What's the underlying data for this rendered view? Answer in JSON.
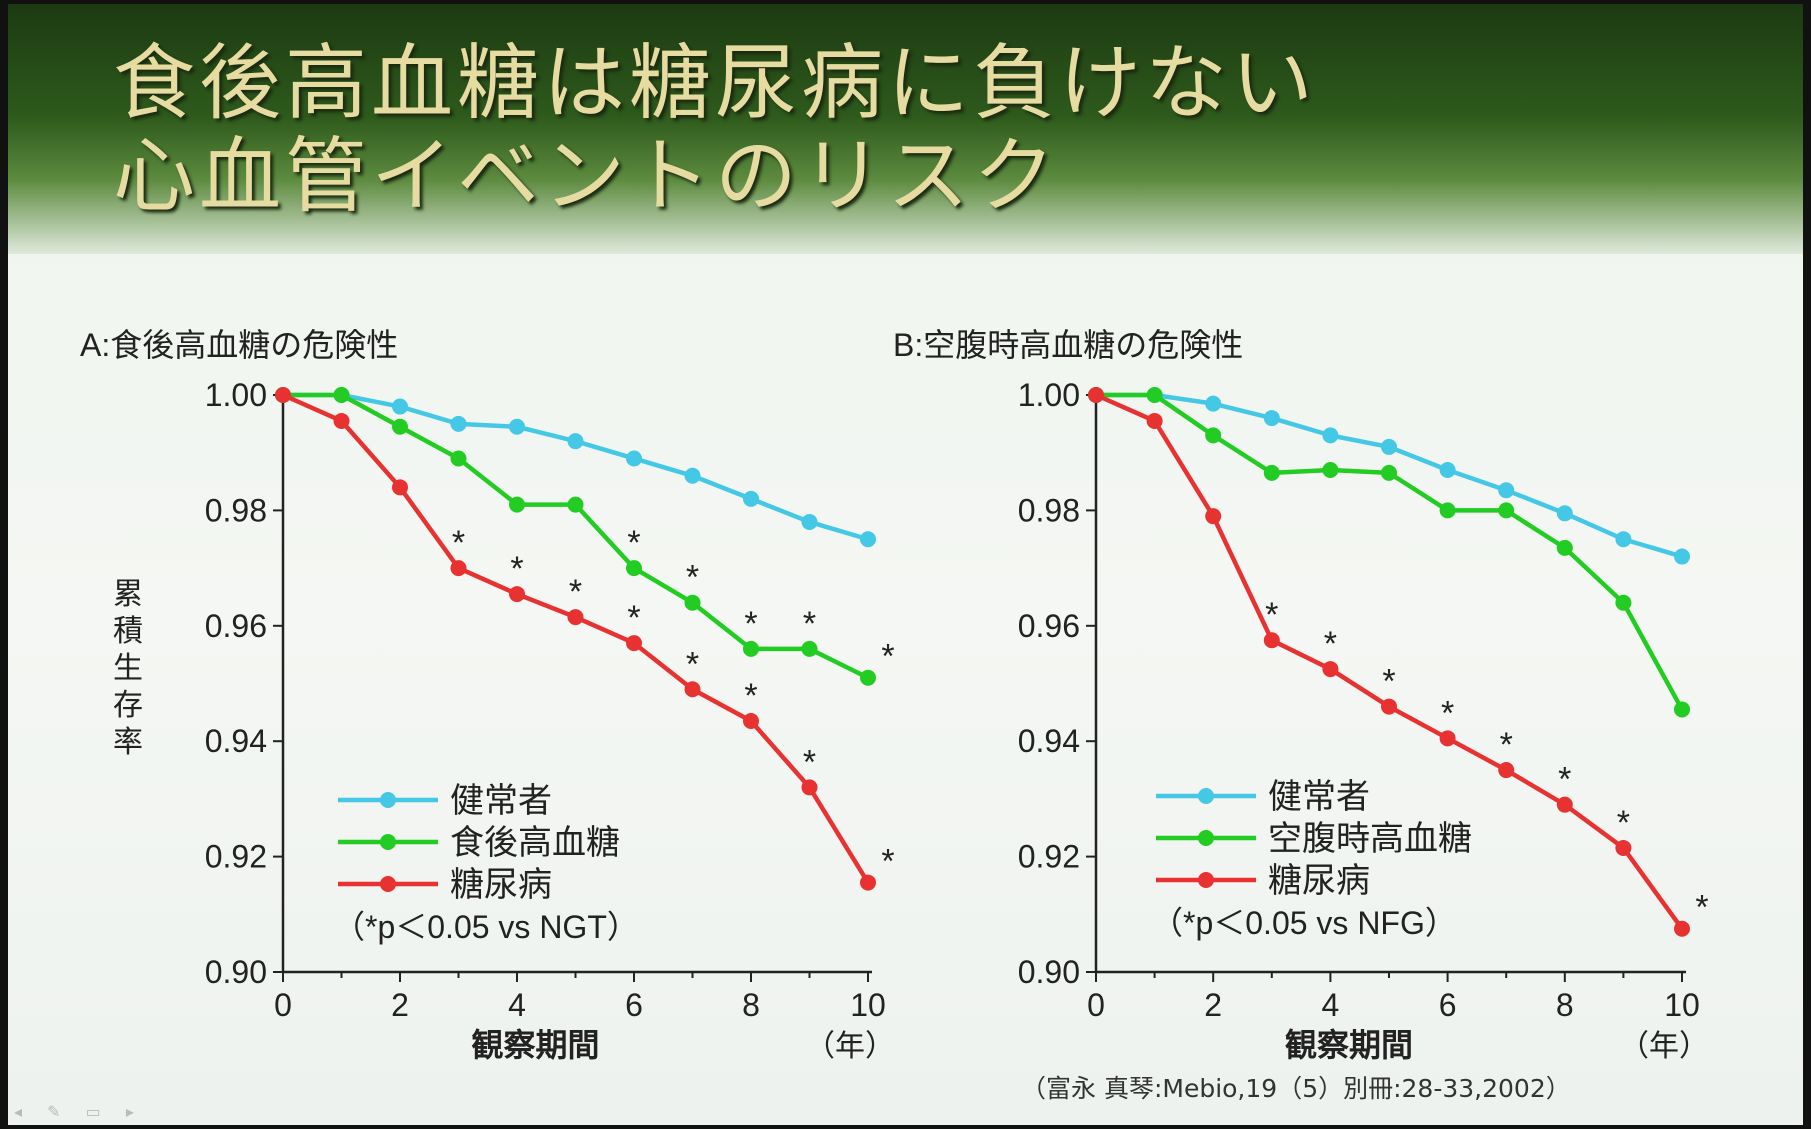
{
  "slide": {
    "title_line1": "食後高血糖は糖尿病に負けない",
    "title_line2": "心血管イベントのリスク",
    "citation": "（富永 真琴:Mebio,19（5）別冊:28-33,2002）",
    "colors": {
      "healthy": "#45c8e6",
      "igt": "#22cc22",
      "diabetes": "#e83232",
      "title": "#e6dca2"
    }
  },
  "chart_data": [
    {
      "type": "line",
      "title": "A:食後高血糖の危険性",
      "ylabel": "累積生存率",
      "xlabel": "観察期間",
      "x_unit": "（年）",
      "xlim": [
        0,
        10
      ],
      "ylim": [
        0.9,
        1.0
      ],
      "xticks": [
        "0",
        "2",
        "4",
        "6",
        "8",
        "10"
      ],
      "yticks": [
        "0.90",
        "0.92",
        "0.94",
        "0.96",
        "0.98",
        "1.00"
      ],
      "x": [
        0,
        1,
        2,
        3,
        4,
        5,
        6,
        7,
        8,
        9,
        10
      ],
      "series": [
        {
          "name": "健常者",
          "color": "#45c8e6",
          "values": [
            1.0,
            1.0,
            0.998,
            0.995,
            0.9945,
            0.992,
            0.989,
            0.986,
            0.982,
            0.978,
            0.975
          ]
        },
        {
          "name": "食後高血糖",
          "color": "#22cc22",
          "values": [
            1.0,
            1.0,
            0.9945,
            0.989,
            0.981,
            0.981,
            0.97,
            0.964,
            0.956,
            0.956,
            0.951
          ]
        },
        {
          "name": "糖尿病",
          "color": "#e83232",
          "values": [
            1.0,
            0.9955,
            0.984,
            0.97,
            0.9655,
            0.9615,
            0.957,
            0.949,
            0.9435,
            0.932,
            0.9155
          ]
        }
      ],
      "significance": [
        {
          "series": "食後高血糖",
          "x": [
            6,
            7,
            8,
            9,
            10
          ]
        },
        {
          "series": "糖尿病",
          "x": [
            3,
            4,
            5,
            6,
            7,
            8,
            9,
            10
          ]
        }
      ],
      "significance_symbol": "*",
      "legend_position": "bottom-left",
      "note": "（*p＜0.05 vs NGT）"
    },
    {
      "type": "line",
      "title": "B:空腹時高血糖の危険性",
      "xlabel": "観察期間",
      "x_unit": "（年）",
      "xlim": [
        0,
        10
      ],
      "ylim": [
        0.9,
        1.0
      ],
      "xticks": [
        "0",
        "2",
        "4",
        "6",
        "8",
        "10"
      ],
      "yticks": [
        "0.90",
        "0.92",
        "0.94",
        "0.96",
        "0.98",
        "1.00"
      ],
      "x": [
        0,
        1,
        2,
        3,
        4,
        5,
        6,
        7,
        8,
        9,
        10
      ],
      "series": [
        {
          "name": "健常者",
          "color": "#45c8e6",
          "values": [
            1.0,
            1.0,
            0.9985,
            0.996,
            0.993,
            0.991,
            0.987,
            0.9835,
            0.9795,
            0.975,
            0.972
          ]
        },
        {
          "name": "空腹時高血糖",
          "color": "#22cc22",
          "values": [
            1.0,
            1.0,
            0.993,
            0.9865,
            0.987,
            0.9865,
            0.98,
            0.98,
            0.9735,
            0.964,
            0.9455
          ]
        },
        {
          "name": "糖尿病",
          "color": "#e83232",
          "values": [
            1.0,
            0.9955,
            0.979,
            0.9575,
            0.9525,
            0.946,
            0.9405,
            0.935,
            0.929,
            0.9215,
            0.9075
          ]
        }
      ],
      "significance": [
        {
          "series": "糖尿病",
          "x": [
            3,
            4,
            5,
            6,
            7,
            8,
            9,
            10
          ]
        }
      ],
      "significance_symbol": "*",
      "legend_position": "bottom-left",
      "note": "（*p＜0.05 vs NFG）"
    }
  ]
}
